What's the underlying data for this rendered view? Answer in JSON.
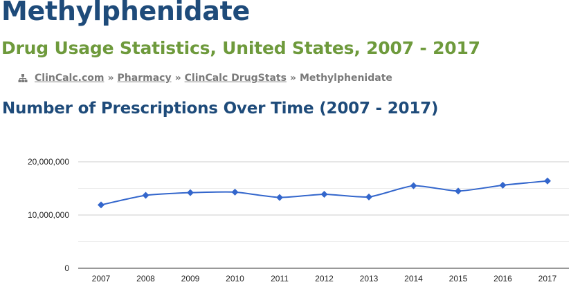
{
  "page": {
    "title": "Methylphenidate",
    "subtitle": "Drug Usage Statistics, United States, 2007 - 2017"
  },
  "breadcrumb": {
    "icon": "sitemap-icon",
    "items": [
      {
        "label": "ClinCalc.com",
        "link": true
      },
      {
        "label": "Pharmacy",
        "link": true
      },
      {
        "label": "ClinCalc DrugStats",
        "link": true
      },
      {
        "label": "Methylphenidate",
        "link": false
      }
    ],
    "separator": "»"
  },
  "section": {
    "heading": "Number of Prescriptions Over Time (2007 - 2017)"
  },
  "colors": {
    "title": "#1e4b7a",
    "subtitle": "#6e9a3c",
    "series": "#3366cc"
  },
  "chart_data": {
    "type": "line",
    "x": [
      "2007",
      "2008",
      "2009",
      "2010",
      "2011",
      "2012",
      "2013",
      "2014",
      "2015",
      "2016",
      "2017"
    ],
    "series": [
      {
        "values": [
          11900000,
          13700000,
          14200000,
          14300000,
          13300000,
          13900000,
          13400000,
          15500000,
          14500000,
          15600000,
          16400000
        ]
      }
    ],
    "y_ticks": [
      0,
      10000000,
      20000000
    ],
    "y_tick_labels": [
      "0",
      "10,000,000",
      "20,000,000"
    ],
    "ylim": [
      0,
      20000000
    ],
    "grid": true,
    "curve": "smooth",
    "marker": "diamond",
    "legend": "none"
  }
}
